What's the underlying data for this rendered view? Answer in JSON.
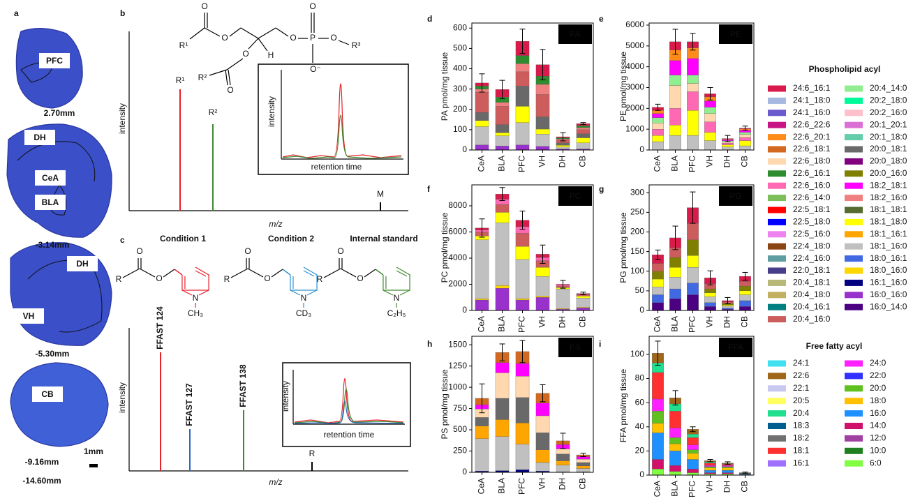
{
  "brain": {
    "label": "a",
    "regions": [
      "PFC",
      "DH",
      "CeA",
      "BLA",
      "DH",
      "VH",
      "CB"
    ],
    "positions": [
      "2.70mm",
      "-3.14mm",
      "-5.30mm",
      "-9.16mm",
      "-14.60mm"
    ],
    "scale": "1mm"
  },
  "schematic_b": {
    "label": "b",
    "y_label": "intensity",
    "x_label": "m/z",
    "peaks": [
      "R¹",
      "R²",
      "M"
    ],
    "inset": {
      "y_label": "intensity",
      "x_label": "retention time"
    },
    "atoms": [
      "O",
      "R¹",
      "O",
      "O",
      "R²",
      "O",
      "H",
      "O",
      "P",
      "O",
      "O",
      "O⁻",
      "R³"
    ]
  },
  "schematic_c": {
    "label": "c",
    "y_label": "intensity",
    "x_label": "m/z",
    "molecules": [
      {
        "condition": "Condition 1",
        "color": "#e8202a",
        "atoms": [
          "O",
          "R",
          "O",
          "N",
          "CH₃"
        ]
      },
      {
        "condition": "Condition 2",
        "color": "#2a8fd0",
        "atoms": [
          "O",
          "R",
          "O",
          "N",
          "CD₃"
        ]
      },
      {
        "condition": "Internal standard",
        "color": "#3d8a2e",
        "atoms": [
          "O",
          "R",
          "O",
          "N",
          "C₂H₅"
        ]
      }
    ],
    "peaks": [
      "FFAST 124",
      "FFAST 127",
      "FFAST 138",
      "R"
    ],
    "inset": {
      "y_label": "intensity",
      "x_label": "retention time"
    }
  },
  "chart_data": [
    {
      "type": "stacked_bar",
      "panel": "d",
      "title": "PA",
      "y_label": "PA pmol/mg tissue",
      "categories": [
        "CeA",
        "BLA",
        "PFC",
        "VH",
        "DH",
        "CB"
      ],
      "ylim": [
        0,
        625
      ],
      "yticks": [
        0,
        100,
        200,
        300,
        400,
        500,
        600
      ],
      "series": [
        {
          "color": "#9932cc",
          "values": [
            25,
            20,
            25,
            18,
            5,
            5
          ]
        },
        {
          "color": "#c0c0c0",
          "values": [
            90,
            50,
            110,
            60,
            10,
            30
          ]
        },
        {
          "color": "#ffff00",
          "values": [
            30,
            15,
            80,
            25,
            8,
            25
          ]
        },
        {
          "color": "#696969",
          "values": [
            40,
            40,
            100,
            60,
            12,
            20
          ]
        },
        {
          "color": "#cd5c5c",
          "values": [
            100,
            90,
            70,
            110,
            15,
            20
          ]
        },
        {
          "color": "#f08080",
          "values": [
            15,
            20,
            40,
            50,
            5,
            10
          ]
        },
        {
          "color": "#2e8b2e",
          "values": [
            15,
            25,
            40,
            40,
            5,
            10
          ]
        },
        {
          "color": "#d81b4a",
          "values": [
            15,
            38,
            70,
            57,
            5,
            10
          ]
        }
      ],
      "errors": [
        45,
        45,
        60,
        75,
        20,
        5
      ]
    },
    {
      "type": "stacked_bar",
      "panel": "e",
      "title": "PE",
      "y_label": "PE pmol/mg tissue",
      "categories": [
        "CeA",
        "BLA",
        "PFC",
        "VH",
        "DH",
        "CB"
      ],
      "ylim": [
        0,
        6100
      ],
      "yticks": [
        0,
        1000,
        2000,
        3000,
        4000,
        5000,
        6000
      ],
      "series": [
        {
          "color": "#c0c0c0",
          "values": [
            400,
            700,
            700,
            450,
            150,
            200
          ]
        },
        {
          "color": "#ffff00",
          "values": [
            300,
            500,
            1200,
            400,
            100,
            250
          ]
        },
        {
          "color": "#ff69b4",
          "values": [
            300,
            800,
            900,
            500,
            80,
            150
          ]
        },
        {
          "color": "#ffd8b0",
          "values": [
            300,
            1100,
            400,
            400,
            60,
            150
          ]
        },
        {
          "color": "#90ee90",
          "values": [
            250,
            500,
            400,
            300,
            50,
            100
          ]
        },
        {
          "color": "#ff00ff",
          "values": [
            200,
            700,
            800,
            300,
            60,
            100
          ]
        },
        {
          "color": "#ff8c1a",
          "values": [
            150,
            500,
            500,
            200,
            30,
            60
          ]
        },
        {
          "color": "#d81b4a",
          "values": [
            150,
            400,
            300,
            150,
            20,
            40
          ]
        }
      ],
      "errors": [
        150,
        600,
        400,
        300,
        150,
        100
      ]
    },
    {
      "type": "stacked_bar",
      "panel": "f",
      "title": "PC",
      "y_label": "PC pmol/mg tissue",
      "categories": [
        "CeA",
        "BLA",
        "PFC",
        "VH",
        "DH",
        "CB"
      ],
      "ylim": [
        0,
        9600
      ],
      "yticks": [
        0,
        2000,
        4000,
        6000,
        8000
      ],
      "series": [
        {
          "color": "#9932cc",
          "values": [
            800,
            1700,
            800,
            1000,
            100,
            200
          ]
        },
        {
          "color": "#ffd700",
          "values": [
            100,
            200,
            100,
            100,
            50,
            50
          ]
        },
        {
          "color": "#c0c0c0",
          "values": [
            4500,
            4800,
            3000,
            1500,
            1500,
            700
          ]
        },
        {
          "color": "#ffff00",
          "values": [
            300,
            800,
            1000,
            700,
            100,
            150
          ]
        },
        {
          "color": "#cd5c5c",
          "values": [
            300,
            600,
            1000,
            500,
            100,
            100
          ]
        },
        {
          "color": "#ff69b4",
          "values": [
            150,
            400,
            500,
            250,
            80,
            50
          ]
        },
        {
          "color": "#d81b4a",
          "values": [
            150,
            400,
            500,
            250,
            70,
            50
          ]
        }
      ],
      "errors": [
        700,
        500,
        700,
        700,
        300,
        100
      ]
    },
    {
      "type": "stacked_bar",
      "panel": "g",
      "title": "PG",
      "y_label": "PG pmol/mg tissue",
      "categories": [
        "CeA",
        "BLA",
        "PFC",
        "VH",
        "DH",
        "CB"
      ],
      "ylim": [
        0,
        320
      ],
      "yticks": [
        0,
        50,
        100,
        150,
        200,
        250,
        300
      ],
      "series": [
        {
          "color": "#4b0082",
          "values": [
            20,
            30,
            40,
            10,
            3,
            10
          ]
        },
        {
          "color": "#4169e1",
          "values": [
            20,
            25,
            30,
            10,
            3,
            15
          ]
        },
        {
          "color": "#c0c0c0",
          "values": [
            20,
            30,
            40,
            15,
            5,
            15
          ]
        },
        {
          "color": "#ffff00",
          "values": [
            20,
            25,
            30,
            10,
            3,
            10
          ]
        },
        {
          "color": "#808000",
          "values": [
            20,
            25,
            40,
            10,
            4,
            12
          ]
        },
        {
          "color": "#cd5c5c",
          "values": [
            20,
            25,
            42,
            13,
            4,
            12
          ]
        },
        {
          "color": "#d81b4a",
          "values": [
            22,
            25,
            40,
            15,
            3,
            13
          ]
        }
      ],
      "errors": [
        12,
        30,
        40,
        18,
        8,
        10
      ]
    },
    {
      "type": "stacked_bar",
      "panel": "h",
      "title": "PS",
      "y_label": "PS pmol/mg tissue",
      "categories": [
        "CeA",
        "BLA",
        "PFC",
        "VH",
        "DH",
        "CB"
      ],
      "ylim": [
        0,
        1600
      ],
      "yticks": [
        0,
        250,
        500,
        750,
        1000,
        1250,
        1500
      ],
      "series": [
        {
          "color": "#000080",
          "values": [
            15,
            20,
            30,
            15,
            5,
            5
          ]
        },
        {
          "color": "#c0c0c0",
          "values": [
            380,
            400,
            300,
            100,
            80,
            40
          ]
        },
        {
          "color": "#ffa500",
          "values": [
            150,
            200,
            250,
            150,
            50,
            30
          ]
        },
        {
          "color": "#696969",
          "values": [
            100,
            250,
            300,
            200,
            80,
            40
          ]
        },
        {
          "color": "#ffd8b0",
          "values": [
            100,
            300,
            250,
            200,
            60,
            40
          ]
        },
        {
          "color": "#ff00ff",
          "values": [
            50,
            120,
            150,
            150,
            50,
            30
          ]
        },
        {
          "color": "#d2691e",
          "values": [
            75,
            120,
            140,
            115,
            45,
            20
          ]
        }
      ],
      "errors": [
        170,
        100,
        130,
        100,
        90,
        20
      ]
    },
    {
      "type": "stacked_bar",
      "panel": "i",
      "title": "FFA",
      "y_label": "FFA pmol/mg tissue",
      "categories": [
        "CeA",
        "BLA",
        "PFC",
        "VH",
        "DH",
        "CB"
      ],
      "ylim": [
        0,
        115
      ],
      "yticks": [
        0,
        20,
        40,
        60,
        80,
        100
      ],
      "series": [
        {
          "color": "#80ff40",
          "values": [
            5,
            3,
            2,
            1,
            1,
            0.3
          ]
        },
        {
          "color": "#d0106a",
          "values": [
            8,
            5,
            3,
            1,
            1,
            0.2
          ]
        },
        {
          "color": "#1e90ff",
          "values": [
            22,
            12,
            8,
            2,
            2,
            0.5
          ]
        },
        {
          "color": "#ffc000",
          "values": [
            8,
            6,
            5,
            2,
            2,
            0.3
          ]
        },
        {
          "color": "#60c020",
          "values": [
            10,
            5,
            3,
            1,
            1,
            0.2
          ]
        },
        {
          "color": "#ff20ff",
          "values": [
            10,
            8,
            4,
            1,
            1,
            0.2
          ]
        },
        {
          "color": "#ff3030",
          "values": [
            22,
            14,
            6,
            2,
            1,
            0.2
          ]
        },
        {
          "color": "#20e090",
          "values": [
            8,
            6,
            3,
            1,
            0.5,
            0.05
          ]
        },
        {
          "color": "#a0661a",
          "values": [
            8,
            5,
            4,
            1,
            0.5,
            0.05
          ]
        }
      ],
      "errors": [
        10,
        6,
        2,
        1,
        1,
        0.5
      ]
    }
  ],
  "legends": [
    {
      "title": "Phospholipid acyl",
      "items": [
        {
          "name": "24:6_16:1",
          "color": "#d81b4a"
        },
        {
          "name": "24:1_18:0",
          "color": "#a6b8e0"
        },
        {
          "name": "24:1_16:0",
          "color": "#6a5acd"
        },
        {
          "name": "22:6_22:6",
          "color": "#c71585"
        },
        {
          "name": "22:6_20:1",
          "color": "#ff8c1a"
        },
        {
          "name": "22:6_18:1",
          "color": "#d2691e"
        },
        {
          "name": "22:6_18:0",
          "color": "#ffd8b0"
        },
        {
          "name": "22:6_16:1",
          "color": "#2e8b2e"
        },
        {
          "name": "22:6_16:0",
          "color": "#ff69b4"
        },
        {
          "name": "22:6_14:0",
          "color": "#7cbf5a"
        },
        {
          "name": "22:5_18:1",
          "color": "#ff0000"
        },
        {
          "name": "22:5_18:0",
          "color": "#0000ff"
        },
        {
          "name": "22:5_16:0",
          "color": "#ee82ee"
        },
        {
          "name": "22:4_18:0",
          "color": "#8b4513"
        },
        {
          "name": "22:4_16:0",
          "color": "#5f9ea0"
        },
        {
          "name": "22:0_18:1",
          "color": "#483d8b"
        },
        {
          "name": "20:4_18:1",
          "color": "#b8b878"
        },
        {
          "name": "20:4_18:0",
          "color": "#c0b060"
        },
        {
          "name": "20:4_16:1",
          "color": "#008080"
        },
        {
          "name": "20:4_16:0",
          "color": "#cd5c5c"
        },
        {
          "name": "20:4_14:0",
          "color": "#90ee90"
        },
        {
          "name": "20:2_18:0",
          "color": "#00fa9a"
        },
        {
          "name": "20:2_16:0",
          "color": "#ffc0cb"
        },
        {
          "name": "20:1_20:1",
          "color": "#da70d6"
        },
        {
          "name": "20:1_18:0",
          "color": "#66cdaa"
        },
        {
          "name": "20:0_18:1",
          "color": "#696969"
        },
        {
          "name": "20:0_18:0",
          "color": "#800080"
        },
        {
          "name": "20:0_16:0",
          "color": "#808000"
        },
        {
          "name": "18:2_18:1",
          "color": "#ff00ff"
        },
        {
          "name": "18:2_16:0",
          "color": "#f08080"
        },
        {
          "name": "18:1_18:1",
          "color": "#556b2f"
        },
        {
          "name": "18:1_18:0",
          "color": "#ffff00"
        },
        {
          "name": "18:1_16:1",
          "color": "#ffa500"
        },
        {
          "name": "18:1_16:0",
          "color": "#c0c0c0"
        },
        {
          "name": "18:0_16:1",
          "color": "#4169e1"
        },
        {
          "name": "18:0_16:0",
          "color": "#ffd700"
        },
        {
          "name": "16:1_16:0",
          "color": "#000080"
        },
        {
          "name": "16:0_16:0",
          "color": "#9932cc"
        },
        {
          "name": "16:0_14:0",
          "color": "#4b0082"
        }
      ]
    },
    {
      "title": "Free fatty acyl",
      "items": [
        {
          "name": "24:1",
          "color": "#40e0f0"
        },
        {
          "name": "22:6",
          "color": "#a0661a"
        },
        {
          "name": "22:1",
          "color": "#c8c8f0"
        },
        {
          "name": "20:5",
          "color": "#ffff60"
        },
        {
          "name": "20:4",
          "color": "#20e090"
        },
        {
          "name": "18:3",
          "color": "#005f8f"
        },
        {
          "name": "18:2",
          "color": "#707070"
        },
        {
          "name": "18:1",
          "color": "#ff3030"
        },
        {
          "name": "16:1",
          "color": "#a070ff"
        },
        {
          "name": "24:0",
          "color": "#ff20ff"
        },
        {
          "name": "22:0",
          "color": "#3030ff"
        },
        {
          "name": "20:0",
          "color": "#60c020"
        },
        {
          "name": "18:0",
          "color": "#ffc000"
        },
        {
          "name": "16:0",
          "color": "#1e90ff"
        },
        {
          "name": "14:0",
          "color": "#d0106a"
        },
        {
          "name": "12:0",
          "color": "#a040a0"
        },
        {
          "name": "10:0",
          "color": "#208020"
        },
        {
          "name": "6:0",
          "color": "#80ff40"
        }
      ]
    }
  ]
}
